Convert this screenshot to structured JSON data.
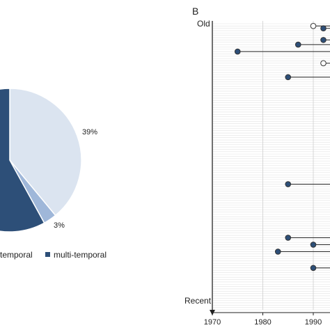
{
  "chart_data": [
    {
      "type": "pie",
      "title": "",
      "slices": [
        {
          "label": "",
          "value": 58,
          "color": "#2d4f78"
        },
        {
          "label": "",
          "value": 3,
          "color": "#9fb7d9"
        },
        {
          "label": "",
          "value": 39,
          "color": "#dbe4f0"
        }
      ],
      "data_labels": [
        "39%",
        "3%"
      ],
      "legend": {
        "placement": "bottom",
        "entries": [
          {
            "label": "temporal",
            "color": "#2d4f78",
            "partial": true
          },
          {
            "label": "multi-temporal",
            "color": "#2d4f78"
          }
        ]
      }
    },
    {
      "type": "scatter",
      "panel_label": "B",
      "y_category_labels": {
        "top": "Old",
        "bottom": "Recent"
      },
      "xlim": [
        1970,
        1997
      ],
      "xticks": [
        1970,
        1980,
        1990
      ],
      "grid": {
        "horizontal_lines": true,
        "vertical_lines": true
      },
      "points": [
        {
          "x": 1990,
          "row": 1,
          "filled": false
        },
        {
          "x": 1992,
          "row": 2,
          "filled": true
        },
        {
          "x": 1992,
          "row": 7,
          "filled": true
        },
        {
          "x": 1987,
          "row": 9,
          "filled": true
        },
        {
          "x": 1975,
          "row": 12,
          "filled": true
        },
        {
          "x": 1992,
          "row": 17,
          "filled": false
        },
        {
          "x": 1985,
          "row": 23,
          "filled": true
        },
        {
          "x": 1985,
          "row": 69,
          "filled": true
        },
        {
          "x": 1985,
          "row": 92,
          "filled": true
        },
        {
          "x": 1990,
          "row": 95,
          "filled": true
        },
        {
          "x": 1983,
          "row": 98,
          "filled": true
        },
        {
          "x": 1990,
          "row": 105,
          "filled": true
        }
      ],
      "row_count": 123
    }
  ]
}
